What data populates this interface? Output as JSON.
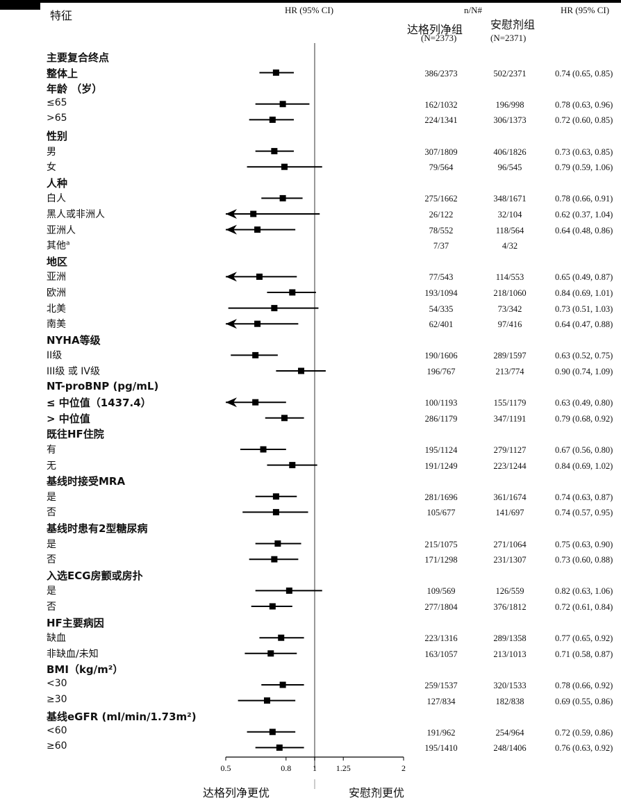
{
  "headers": {
    "feature": "特征",
    "hr_left": "HR (95% CI)",
    "nN": "n/N#",
    "group_drug": "达格列净组",
    "group_drug_n": "(N=2373)",
    "group_placebo": "安慰剂组",
    "group_placebo_n": "(N=2371)",
    "hr_right": "HR (95% CI)"
  },
  "axis_labels": {
    "favors_drug": "达格列净更优",
    "favors_placebo": "安慰剂更优"
  },
  "chart_data": {
    "type": "forest",
    "x_scale": "log",
    "xlim": [
      0.5,
      2
    ],
    "x_ticks": [
      0.5,
      0.8,
      1,
      1.25,
      2
    ],
    "x_tick_labels": [
      "0.5",
      "0.8",
      "1",
      "1.25",
      "2"
    ],
    "reference_line": 1,
    "rows": [
      {
        "label": "主要复合终点",
        "header": true
      },
      {
        "label": "整体上",
        "header": true,
        "n1": "386/2373",
        "n2": "502/2371",
        "hr": 0.74,
        "lo": 0.65,
        "hi": 0.85,
        "ci_text": "0.74 (0.65, 0.85)"
      },
      {
        "label": "年龄 （岁）",
        "header": true
      },
      {
        "label": "≤65",
        "n1": "162/1032",
        "n2": "196/998",
        "hr": 0.78,
        "lo": 0.63,
        "hi": 0.96,
        "ci_text": "0.78 (0.63, 0.96)"
      },
      {
        "label": ">65",
        "n1": "224/1341",
        "n2": "306/1373",
        "hr": 0.72,
        "lo": 0.6,
        "hi": 0.85,
        "ci_text": "0.72 (0.60, 0.85)"
      },
      {
        "label": "性别",
        "header": true
      },
      {
        "label": "男",
        "n1": "307/1809",
        "n2": "406/1826",
        "hr": 0.73,
        "lo": 0.63,
        "hi": 0.85,
        "ci_text": "0.73 (0.63, 0.85)"
      },
      {
        "label": "女",
        "n1": "79/564",
        "n2": "96/545",
        "hr": 0.79,
        "lo": 0.59,
        "hi": 1.06,
        "ci_text": "0.79 (0.59, 1.06)"
      },
      {
        "label": "人种",
        "header": true
      },
      {
        "label": "白人",
        "n1": "275/1662",
        "n2": "348/1671",
        "hr": 0.78,
        "lo": 0.66,
        "hi": 0.91,
        "ci_text": "0.78 (0.66, 0.91)"
      },
      {
        "label": "黑人或非洲人",
        "n1": "26/122",
        "n2": "32/104",
        "hr": 0.62,
        "lo": 0.37,
        "hi": 1.04,
        "ci_text": "0.62 (0.37, 1.04)"
      },
      {
        "label": "亚洲人",
        "n1": "78/552",
        "n2": "118/564",
        "hr": 0.64,
        "lo": 0.48,
        "hi": 0.86,
        "ci_text": "0.64 (0.48, 0.86)"
      },
      {
        "label": "其他",
        "sup": "a",
        "n1": "7/37",
        "n2": "4/32",
        "ci_text": ""
      },
      {
        "label": "地区",
        "header": true
      },
      {
        "label": "亚洲",
        "n1": "77/543",
        "n2": "114/553",
        "hr": 0.65,
        "lo": 0.49,
        "hi": 0.87,
        "ci_text": "0.65 (0.49, 0.87)"
      },
      {
        "label": "欧洲",
        "n1": "193/1094",
        "n2": "218/1060",
        "hr": 0.84,
        "lo": 0.69,
        "hi": 1.01,
        "ci_text": "0.84 (0.69, 1.01)"
      },
      {
        "label": "北美",
        "n1": "54/335",
        "n2": "73/342",
        "hr": 0.73,
        "lo": 0.51,
        "hi": 1.03,
        "ci_text": "0.73 (0.51, 1.03)"
      },
      {
        "label": "南美",
        "n1": "62/401",
        "n2": "97/416",
        "hr": 0.64,
        "lo": 0.47,
        "hi": 0.88,
        "ci_text": "0.64 (0.47, 0.88)"
      },
      {
        "label": "NYHA等级",
        "header": true
      },
      {
        "label": "II级",
        "n1": "190/1606",
        "n2": "289/1597",
        "hr": 0.63,
        "lo": 0.52,
        "hi": 0.75,
        "ci_text": "0.63 (0.52, 0.75)"
      },
      {
        "label": "III级 或 IV级",
        "n1": "196/767",
        "n2": "213/774",
        "hr": 0.9,
        "lo": 0.74,
        "hi": 1.09,
        "ci_text": "0.90 (0.74, 1.09)"
      },
      {
        "label": "NT-proBNP (pg/mL)",
        "header": true
      },
      {
        "label": "≤ 中位值（1437.4）",
        "header": true,
        "n1": "100/1193",
        "n2": "155/1179",
        "hr": 0.63,
        "lo": 0.49,
        "hi": 0.8,
        "ci_text": "0.63 (0.49, 0.80)"
      },
      {
        "label": "> 中位值",
        "header": true,
        "n1": "286/1179",
        "n2": "347/1191",
        "hr": 0.79,
        "lo": 0.68,
        "hi": 0.92,
        "ci_text": "0.79 (0.68, 0.92)"
      },
      {
        "label": "既往HF住院",
        "header": true
      },
      {
        "label": "有",
        "n1": "195/1124",
        "n2": "279/1127",
        "hr": 0.67,
        "lo": 0.56,
        "hi": 0.8,
        "ci_text": "0.67 (0.56, 0.80)"
      },
      {
        "label": "无",
        "n1": "191/1249",
        "n2": "223/1244",
        "hr": 0.84,
        "lo": 0.69,
        "hi": 1.02,
        "ci_text": "0.84 (0.69, 1.02)"
      },
      {
        "label": "基线时接受MRA",
        "header": true
      },
      {
        "label": "是",
        "n1": "281/1696",
        "n2": "361/1674",
        "hr": 0.74,
        "lo": 0.63,
        "hi": 0.87,
        "ci_text": "0.74 (0.63, 0.87)"
      },
      {
        "label": "否",
        "n1": "105/677",
        "n2": "141/697",
        "hr": 0.74,
        "lo": 0.57,
        "hi": 0.95,
        "ci_text": "0.74 (0.57, 0.95)"
      },
      {
        "label": "基线时患有2型糖尿病",
        "header": true
      },
      {
        "label": "是",
        "n1": "215/1075",
        "n2": "271/1064",
        "hr": 0.75,
        "lo": 0.63,
        "hi": 0.9,
        "ci_text": "0.75 (0.63, 0.90)"
      },
      {
        "label": "否",
        "n1": "171/1298",
        "n2": "231/1307",
        "hr": 0.73,
        "lo": 0.6,
        "hi": 0.88,
        "ci_text": "0.73 (0.60, 0.88)"
      },
      {
        "label": "入选ECG房颤或房扑",
        "header": true
      },
      {
        "label": "是",
        "n1": "109/569",
        "n2": "126/559",
        "hr": 0.82,
        "lo": 0.63,
        "hi": 1.06,
        "ci_text": "0.82 (0.63, 1.06)"
      },
      {
        "label": "否",
        "n1": "277/1804",
        "n2": "376/1812",
        "hr": 0.72,
        "lo": 0.61,
        "hi": 0.84,
        "ci_text": "0.72 (0.61, 0.84)"
      },
      {
        "label": "HF主要病因",
        "header": true
      },
      {
        "label": "缺血",
        "n1": "223/1316",
        "n2": "289/1358",
        "hr": 0.77,
        "lo": 0.65,
        "hi": 0.92,
        "ci_text": "0.77 (0.65, 0.92)"
      },
      {
        "label": "非缺血/未知",
        "n1": "163/1057",
        "n2": "213/1013",
        "hr": 0.71,
        "lo": 0.58,
        "hi": 0.87,
        "ci_text": "0.71 (0.58, 0.87)"
      },
      {
        "label": "BMI（kg/m²）",
        "header": true
      },
      {
        "label": "<30",
        "n1": "259/1537",
        "n2": "320/1533",
        "hr": 0.78,
        "lo": 0.66,
        "hi": 0.92,
        "ci_text": "0.78 (0.66, 0.92)"
      },
      {
        "label": "≥30",
        "n1": "127/834",
        "n2": "182/838",
        "hr": 0.69,
        "lo": 0.55,
        "hi": 0.86,
        "ci_text": "0.69 (0.55, 0.86)"
      },
      {
        "label": "基线eGFR (ml/min/1.73m²)",
        "header": true
      },
      {
        "label": "<60",
        "n1": "191/962",
        "n2": "254/964",
        "hr": 0.72,
        "lo": 0.59,
        "hi": 0.86,
        "ci_text": "0.72 (0.59, 0.86)"
      },
      {
        "label": "≥60",
        "n1": "195/1410",
        "n2": "248/1406",
        "hr": 0.76,
        "lo": 0.63,
        "hi": 0.92,
        "ci_text": "0.76 (0.63, 0.92)"
      }
    ]
  }
}
